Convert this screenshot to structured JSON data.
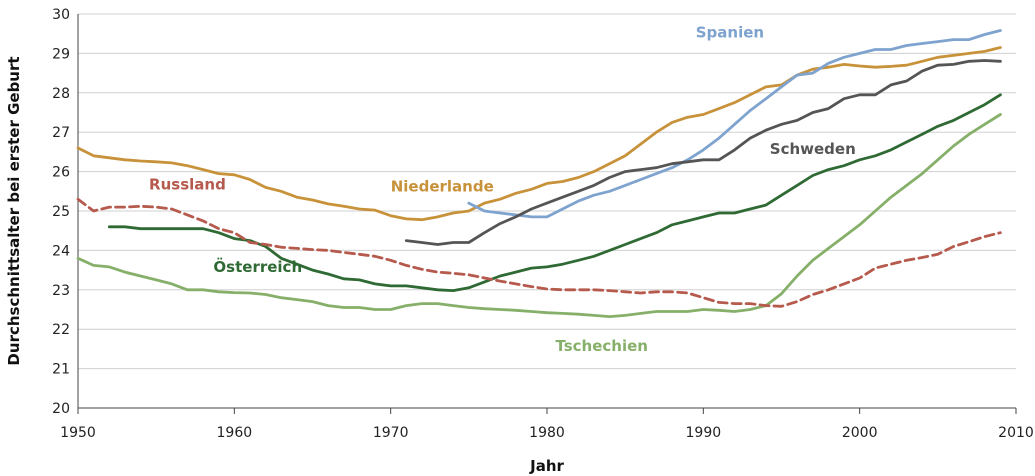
{
  "chart_data": {
    "type": "line",
    "title": "",
    "xlabel": "Jahr",
    "ylabel": "Durchschnittsalter bei erster Geburt",
    "xlim": [
      1950,
      2010
    ],
    "ylim": [
      20,
      30
    ],
    "x_ticks": [
      "1950",
      "1960",
      "1970",
      "1980",
      "1990",
      "2000",
      "2010"
    ],
    "y_ticks": [
      "20",
      "21",
      "22",
      "23",
      "24",
      "25",
      "26",
      "27",
      "28",
      "29",
      "30"
    ],
    "grid": "horizontal",
    "legend": "inline labels",
    "series": [
      {
        "name": "Niederlande",
        "color": "#c8923a",
        "dash": "solid",
        "x": [
          1950,
          1951,
          1952,
          1953,
          1954,
          1955,
          1956,
          1957,
          1958,
          1959,
          1960,
          1961,
          1962,
          1963,
          1964,
          1965,
          1966,
          1967,
          1968,
          1969,
          1970,
          1971,
          1972,
          1973,
          1974,
          1975,
          1976,
          1977,
          1978,
          1979,
          1980,
          1981,
          1982,
          1983,
          1984,
          1985,
          1986,
          1987,
          1988,
          1989,
          1990,
          1991,
          1992,
          1993,
          1994,
          1995,
          1996,
          1997,
          1998,
          1999,
          2000,
          2001,
          2002,
          2003,
          2004,
          2005,
          2006,
          2007,
          2008,
          2009
        ],
        "y": [
          26.6,
          26.4,
          26.35,
          26.3,
          26.27,
          26.25,
          26.22,
          26.15,
          26.05,
          25.95,
          25.92,
          25.8,
          25.6,
          25.5,
          25.35,
          25.28,
          25.18,
          25.12,
          25.05,
          25.02,
          24.88,
          24.8,
          24.78,
          24.85,
          24.95,
          25.0,
          25.2,
          25.3,
          25.45,
          25.55,
          25.7,
          25.75,
          25.85,
          26.0,
          26.2,
          26.4,
          26.7,
          27.0,
          27.25,
          27.38,
          27.45,
          27.6,
          27.75,
          27.95,
          28.15,
          28.2,
          28.45,
          28.6,
          28.65,
          28.72,
          28.68,
          28.65,
          28.67,
          28.7,
          28.8,
          28.9,
          28.95,
          29.0,
          29.05,
          29.15
        ]
      },
      {
        "name": "Spanien",
        "color": "#7ea3cf",
        "dash": "solid",
        "x": [
          1975,
          1976,
          1977,
          1978,
          1979,
          1980,
          1981,
          1982,
          1983,
          1984,
          1985,
          1986,
          1987,
          1988,
          1989,
          1990,
          1991,
          1992,
          1993,
          1994,
          1995,
          1996,
          1997,
          1998,
          1999,
          2000,
          2001,
          2002,
          2003,
          2004,
          2005,
          2006,
          2007,
          2008,
          2009
        ],
        "y": [
          25.2,
          25.0,
          24.95,
          24.9,
          24.85,
          24.85,
          25.05,
          25.25,
          25.4,
          25.5,
          25.65,
          25.8,
          25.95,
          26.1,
          26.3,
          26.55,
          26.85,
          27.2,
          27.55,
          27.85,
          28.15,
          28.45,
          28.5,
          28.75,
          28.9,
          29.0,
          29.1,
          29.1,
          29.2,
          29.25,
          29.3,
          29.35,
          29.35,
          29.48,
          29.58
        ]
      },
      {
        "name": "Schweden",
        "color": "#555555",
        "dash": "solid",
        "x": [
          1971,
          1972,
          1973,
          1974,
          1975,
          1976,
          1977,
          1978,
          1979,
          1980,
          1981,
          1982,
          1983,
          1984,
          1985,
          1986,
          1987,
          1988,
          1989,
          1990,
          1991,
          1992,
          1993,
          1994,
          1995,
          1996,
          1997,
          1998,
          1999,
          2000,
          2001,
          2002,
          2003,
          2004,
          2005,
          2006,
          2007,
          2008,
          2009
        ],
        "y": [
          24.25,
          24.2,
          24.15,
          24.2,
          24.2,
          24.45,
          24.68,
          24.85,
          25.05,
          25.2,
          25.35,
          25.5,
          25.65,
          25.85,
          26.0,
          26.05,
          26.1,
          26.2,
          26.25,
          26.3,
          26.3,
          26.55,
          26.85,
          27.05,
          27.2,
          27.3,
          27.5,
          27.6,
          27.85,
          27.95,
          27.95,
          28.2,
          28.3,
          28.55,
          28.7,
          28.72,
          28.8,
          28.82,
          28.8
        ]
      },
      {
        "name": "Österreich",
        "color": "#2f6a34",
        "dash": "solid",
        "x": [
          1952,
          1953,
          1954,
          1955,
          1956,
          1957,
          1958,
          1959,
          1960,
          1961,
          1962,
          1963,
          1964,
          1965,
          1966,
          1967,
          1968,
          1969,
          1970,
          1971,
          1972,
          1973,
          1974,
          1975,
          1976,
          1977,
          1978,
          1979,
          1980,
          1981,
          1982,
          1983,
          1984,
          1985,
          1986,
          1987,
          1988,
          1989,
          1990,
          1991,
          1992,
          1993,
          1994,
          1995,
          1996,
          1997,
          1998,
          1999,
          2000,
          2001,
          2002,
          2003,
          2004,
          2005,
          2006,
          2007,
          2008,
          2009
        ],
        "y": [
          24.6,
          24.6,
          24.55,
          24.55,
          24.55,
          24.55,
          24.55,
          24.45,
          24.3,
          24.25,
          24.1,
          23.8,
          23.65,
          23.5,
          23.4,
          23.28,
          23.25,
          23.15,
          23.1,
          23.1,
          23.05,
          23.0,
          22.98,
          23.05,
          23.2,
          23.35,
          23.45,
          23.55,
          23.58,
          23.65,
          23.75,
          23.85,
          24.0,
          24.15,
          24.3,
          24.45,
          24.65,
          24.75,
          24.85,
          24.95,
          24.95,
          25.05,
          25.15,
          25.4,
          25.65,
          25.9,
          26.05,
          26.15,
          26.3,
          26.4,
          26.55,
          26.75,
          26.95,
          27.15,
          27.3,
          27.5,
          27.7,
          27.95
        ]
      },
      {
        "name": "Tschechien",
        "color": "#86b06a",
        "dash": "solid",
        "x": [
          1950,
          1951,
          1952,
          1953,
          1954,
          1955,
          1956,
          1957,
          1958,
          1959,
          1960,
          1961,
          1962,
          1963,
          1964,
          1965,
          1966,
          1967,
          1968,
          1969,
          1970,
          1971,
          1972,
          1973,
          1974,
          1975,
          1976,
          1977,
          1978,
          1979,
          1980,
          1981,
          1982,
          1983,
          1984,
          1985,
          1986,
          1987,
          1988,
          1989,
          1990,
          1991,
          1992,
          1993,
          1994,
          1995,
          1996,
          1997,
          1998,
          1999,
          2000,
          2001,
          2002,
          2003,
          2004,
          2005,
          2006,
          2007,
          2008,
          2009
        ],
        "y": [
          23.8,
          23.62,
          23.58,
          23.45,
          23.35,
          23.25,
          23.15,
          23.0,
          23.0,
          22.95,
          22.93,
          22.92,
          22.88,
          22.8,
          22.75,
          22.7,
          22.6,
          22.55,
          22.55,
          22.5,
          22.5,
          22.6,
          22.65,
          22.65,
          22.6,
          22.55,
          22.52,
          22.5,
          22.48,
          22.45,
          22.42,
          22.4,
          22.38,
          22.35,
          22.32,
          22.35,
          22.4,
          22.45,
          22.45,
          22.45,
          22.5,
          22.48,
          22.45,
          22.5,
          22.6,
          22.9,
          23.35,
          23.75,
          24.05,
          24.35,
          24.65,
          25.0,
          25.35,
          25.65,
          25.95,
          26.3,
          26.65,
          26.95,
          27.2,
          27.45
        ]
      },
      {
        "name": "Russland",
        "color": "#b55a4c",
        "dash": "dashed",
        "x": [
          1950,
          1951,
          1952,
          1953,
          1954,
          1955,
          1956,
          1957,
          1958,
          1959,
          1960,
          1961,
          1962,
          1963,
          1964,
          1965,
          1966,
          1967,
          1968,
          1969,
          1970,
          1971,
          1972,
          1973,
          1974,
          1975,
          1976,
          1977,
          1978,
          1979,
          1980,
          1981,
          1982,
          1983,
          1984,
          1985,
          1986,
          1987,
          1988,
          1989,
          1990,
          1991,
          1992,
          1993,
          1994,
          1995,
          1996,
          1997,
          1998,
          1999,
          2000,
          2001,
          2002,
          2003,
          2004,
          2005,
          2006,
          2007,
          2008,
          2009
        ],
        "y": [
          25.3,
          25.0,
          25.1,
          25.1,
          25.12,
          25.1,
          25.05,
          24.9,
          24.75,
          24.55,
          24.45,
          24.2,
          24.15,
          24.08,
          24.05,
          24.02,
          24.0,
          23.95,
          23.9,
          23.85,
          23.75,
          23.62,
          23.52,
          23.45,
          23.42,
          23.38,
          23.3,
          23.22,
          23.15,
          23.08,
          23.02,
          23.0,
          23.0,
          23.0,
          22.98,
          22.95,
          22.92,
          22.95,
          22.95,
          22.92,
          22.8,
          22.68,
          22.65,
          22.65,
          22.6,
          22.58,
          22.7,
          22.88,
          23.0,
          23.15,
          23.3,
          23.55,
          23.65,
          23.75,
          23.82,
          23.9,
          24.1,
          24.22,
          24.35,
          24.45
        ]
      }
    ],
    "annotations": [
      {
        "text": "Russland",
        "series": "Russland",
        "x": 1957,
        "y": 25.55,
        "anchor": "middle"
      },
      {
        "text": "Niederlande",
        "series": "Niederlande",
        "x": 1973.3,
        "y": 25.5,
        "anchor": "middle"
      },
      {
        "text": "Spanien",
        "series": "Spanien",
        "x": 1991.7,
        "y": 29.4,
        "anchor": "middle"
      },
      {
        "text": "Schweden",
        "series": "Schweden",
        "x": 1997,
        "y": 26.45,
        "anchor": "middle"
      },
      {
        "text": "Österreich",
        "series": "Österreich",
        "x": 1961.5,
        "y": 23.45,
        "anchor": "middle"
      },
      {
        "text": "Tschechien",
        "series": "Tschechien",
        "x": 1983.5,
        "y": 21.45,
        "anchor": "middle"
      }
    ]
  }
}
